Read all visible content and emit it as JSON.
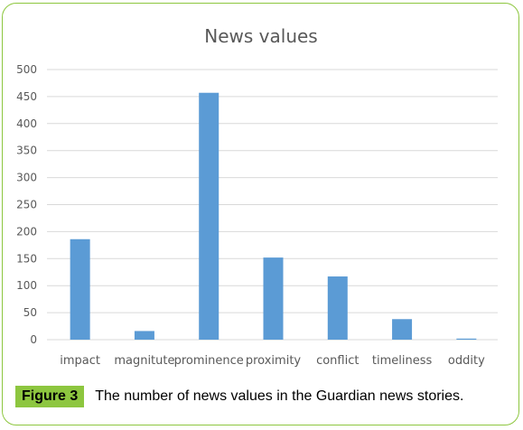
{
  "chart_data": {
    "type": "bar",
    "title": "News values",
    "categories": [
      "impact",
      "magnitute",
      "prominence",
      "proximity",
      "conflict",
      "timeliness",
      "oddity"
    ],
    "values": [
      186,
      16,
      457,
      152,
      117,
      38,
      2
    ],
    "ylim": [
      0,
      500
    ],
    "yticks": [
      0,
      50,
      100,
      150,
      200,
      250,
      300,
      350,
      400,
      450,
      500
    ],
    "grid": true,
    "bar_color": "#5b9bd5"
  },
  "caption": {
    "label": "Figure 3",
    "text": "The number of news values in the Guardian news stories."
  },
  "colors": {
    "accent": "#8dc63f",
    "grid": "#d9d9d9"
  }
}
